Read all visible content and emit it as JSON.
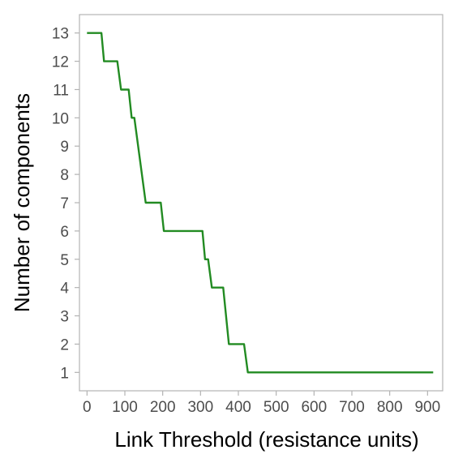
{
  "chart_data": {
    "type": "line",
    "title": "",
    "xlabel": "Link Threshold (resistance units)",
    "ylabel": "Number of components",
    "xlim": [
      -20,
      940
    ],
    "ylim": [
      0.35,
      13.65
    ],
    "x_ticks": [
      0,
      100,
      200,
      300,
      400,
      500,
      600,
      700,
      800,
      900
    ],
    "y_ticks": [
      1,
      2,
      3,
      4,
      5,
      6,
      7,
      8,
      9,
      10,
      11,
      12,
      13
    ],
    "grid": false,
    "legend": "none",
    "series": [
      {
        "color": "#228B22",
        "points": [
          [
            0,
            13
          ],
          [
            38,
            13
          ],
          [
            45,
            12
          ],
          [
            80,
            12
          ],
          [
            90,
            11
          ],
          [
            110,
            11
          ],
          [
            118,
            10
          ],
          [
            125,
            10
          ],
          [
            155,
            7
          ],
          [
            195,
            7
          ],
          [
            203,
            6
          ],
          [
            305,
            6
          ],
          [
            312,
            5
          ],
          [
            320,
            5
          ],
          [
            330,
            4
          ],
          [
            360,
            4
          ],
          [
            375,
            2
          ],
          [
            415,
            2
          ],
          [
            425,
            1
          ],
          [
            915,
            1
          ]
        ]
      }
    ]
  }
}
